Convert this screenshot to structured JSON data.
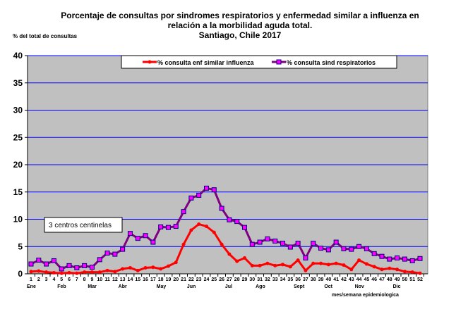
{
  "chart_data": {
    "type": "line",
    "title": [
      "Porcentaje de consultas por sindromes respiratorios y  enfermedad similar a influenza en",
      "relación a la morbilidad aguda total.",
      "Santiago, Chile 2017"
    ],
    "ylabel": "% del total de consultas",
    "xlabel": "mes/semana epidemiologica",
    "ylim": [
      0,
      40
    ],
    "yticks": [
      0,
      5,
      10,
      15,
      20,
      25,
      30,
      35,
      40
    ],
    "x": [
      1,
      2,
      3,
      4,
      5,
      6,
      7,
      8,
      9,
      10,
      11,
      12,
      13,
      14,
      15,
      16,
      17,
      18,
      19,
      20,
      21,
      22,
      23,
      24,
      25,
      26,
      27,
      28,
      29,
      30,
      31,
      32,
      33,
      34,
      35,
      36,
      37,
      38,
      39,
      40,
      41,
      42,
      43,
      44,
      45,
      46,
      47,
      48,
      49,
      50,
      51,
      52
    ],
    "months": [
      {
        "label": "Ene",
        "week": 1
      },
      {
        "label": "Feb",
        "week": 5
      },
      {
        "label": "Mar",
        "week": 9
      },
      {
        "label": "Abr",
        "week": 13
      },
      {
        "label": "May",
        "week": 18
      },
      {
        "label": "Jun",
        "week": 22
      },
      {
        "label": "Jul",
        "week": 27
      },
      {
        "label": "Ago",
        "week": 31
      },
      {
        "label": "Sept",
        "week": 36
      },
      {
        "label": "Oct",
        "week": 40
      },
      {
        "label": "Nov",
        "week": 44
      },
      {
        "label": "Dic",
        "week": 49
      }
    ],
    "annotation": "3 centros centinelas",
    "legend_position": "top",
    "series": [
      {
        "name": "% consulta enf similar influenza",
        "color": "#ff0000",
        "values": [
          0.4,
          0.5,
          0.3,
          0.2,
          0.1,
          0.2,
          0.1,
          0.3,
          0.3,
          0.3,
          0.6,
          0.4,
          0.9,
          1.1,
          0.6,
          1.1,
          1.2,
          0.9,
          1.4,
          2.1,
          5.4,
          8.0,
          9.1,
          8.7,
          7.6,
          5.4,
          3.6,
          2.3,
          2.9,
          1.5,
          1.5,
          1.9,
          1.5,
          1.7,
          1.3,
          2.5,
          0.6,
          1.9,
          1.9,
          1.7,
          1.9,
          1.6,
          0.8,
          2.5,
          1.8,
          1.3,
          0.8,
          1.0,
          0.8,
          0.4,
          0.3,
          0.1
        ]
      },
      {
        "name": "% consulta sind respiratorios",
        "color": "#800080",
        "marker": "#ff00ff",
        "values": [
          1.8,
          2.5,
          1.8,
          2.4,
          0.9,
          1.5,
          1.1,
          1.5,
          1.2,
          2.6,
          3.8,
          3.6,
          4.5,
          7.4,
          6.5,
          7.0,
          5.8,
          8.6,
          8.5,
          8.7,
          11.4,
          13.9,
          14.4,
          15.7,
          15.4,
          12.0,
          9.9,
          9.6,
          8.5,
          5.4,
          5.8,
          6.4,
          6.0,
          5.6,
          4.9,
          5.6,
          2.9,
          5.6,
          4.7,
          4.4,
          5.8,
          4.6,
          4.5,
          5.0,
          4.6,
          3.7,
          3.2,
          2.7,
          2.9,
          2.7,
          2.4,
          2.8
        ]
      }
    ]
  }
}
